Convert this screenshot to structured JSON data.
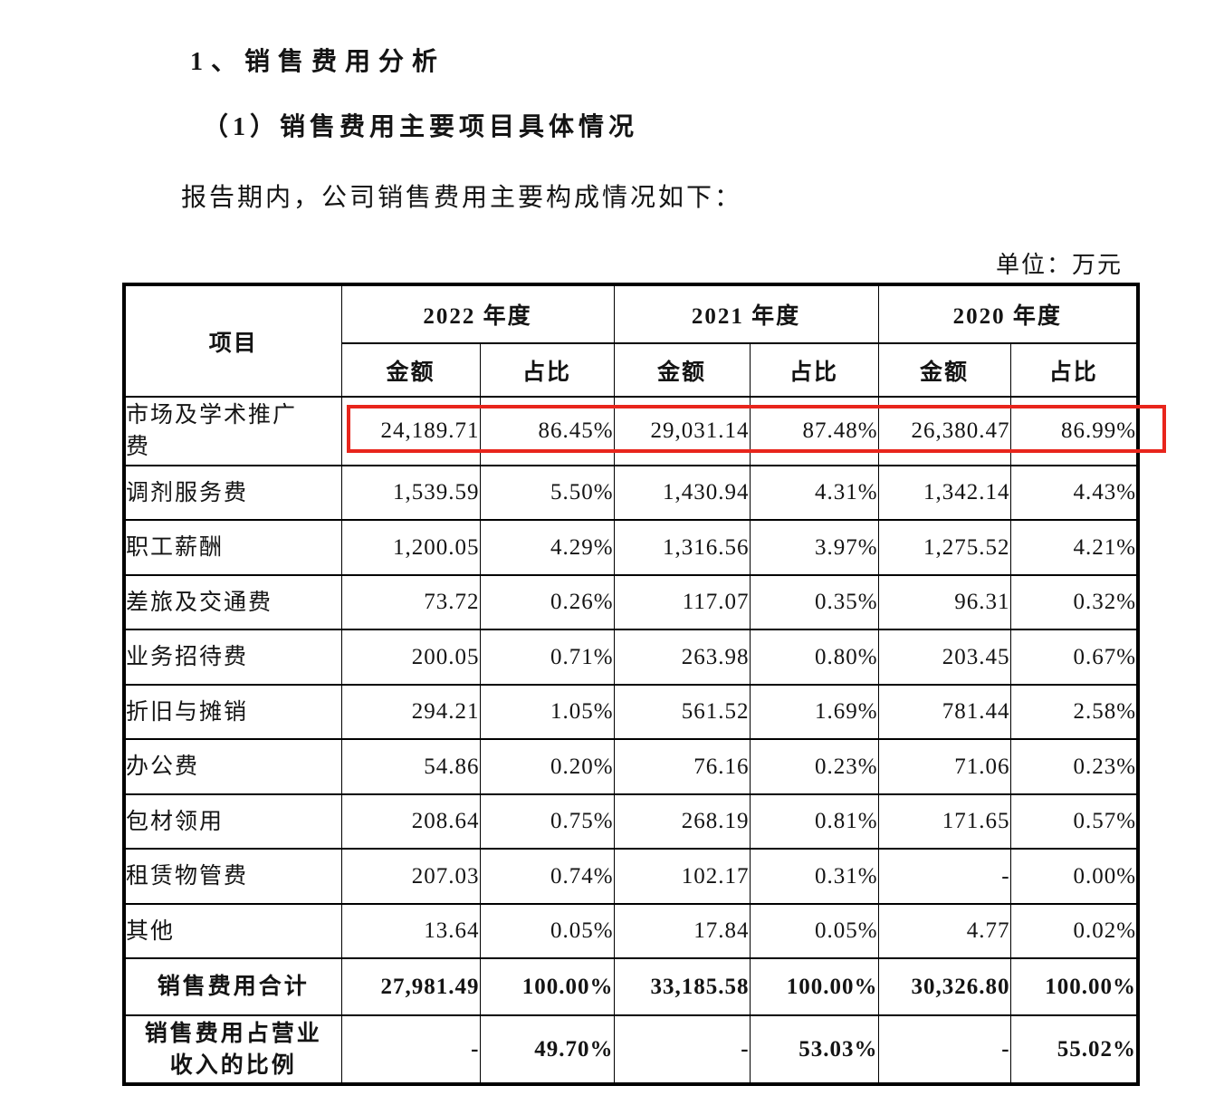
{
  "page": {
    "heading1": "1、销售费用分析",
    "heading2": "（1）销售费用主要项目具体情况",
    "paragraph": "报告期内，公司销售费用主要构成情况如下：",
    "unit_label": "单位：万元"
  },
  "table": {
    "corner_header": "项目",
    "sub_headers": [
      "金额",
      "占比"
    ],
    "year_groups": [
      {
        "year": "2022 年度"
      },
      {
        "year": "2021 年度"
      },
      {
        "year": "2020 年度"
      }
    ],
    "highlight_color": "#e8251c",
    "rows": [
      {
        "label": "市场及学术推广\n费",
        "values": [
          "24,189.71",
          "86.45%",
          "29,031.14",
          "87.48%",
          "26,380.47",
          "86.99%"
        ],
        "bold": false,
        "label_center": false,
        "highlighted": true
      },
      {
        "label": "调剂服务费",
        "values": [
          "1,539.59",
          "5.50%",
          "1,430.94",
          "4.31%",
          "1,342.14",
          "4.43%"
        ],
        "bold": false,
        "label_center": false,
        "highlighted": false
      },
      {
        "label": "职工薪酬",
        "values": [
          "1,200.05",
          "4.29%",
          "1,316.56",
          "3.97%",
          "1,275.52",
          "4.21%"
        ],
        "bold": false,
        "label_center": false,
        "highlighted": false
      },
      {
        "label": "差旅及交通费",
        "values": [
          "73.72",
          "0.26%",
          "117.07",
          "0.35%",
          "96.31",
          "0.32%"
        ],
        "bold": false,
        "label_center": false,
        "highlighted": false
      },
      {
        "label": "业务招待费",
        "values": [
          "200.05",
          "0.71%",
          "263.98",
          "0.80%",
          "203.45",
          "0.67%"
        ],
        "bold": false,
        "label_center": false,
        "highlighted": false
      },
      {
        "label": "折旧与摊销",
        "values": [
          "294.21",
          "1.05%",
          "561.52",
          "1.69%",
          "781.44",
          "2.58%"
        ],
        "bold": false,
        "label_center": false,
        "highlighted": false
      },
      {
        "label": "办公费",
        "values": [
          "54.86",
          "0.20%",
          "76.16",
          "0.23%",
          "71.06",
          "0.23%"
        ],
        "bold": false,
        "label_center": false,
        "highlighted": false
      },
      {
        "label": "包材领用",
        "values": [
          "208.64",
          "0.75%",
          "268.19",
          "0.81%",
          "171.65",
          "0.57%"
        ],
        "bold": false,
        "label_center": false,
        "highlighted": false
      },
      {
        "label": "租赁物管费",
        "values": [
          "207.03",
          "0.74%",
          "102.17",
          "0.31%",
          "-",
          "0.00%"
        ],
        "bold": false,
        "label_center": false,
        "highlighted": false
      },
      {
        "label": "其他",
        "values": [
          "13.64",
          "0.05%",
          "17.84",
          "0.05%",
          "4.77",
          "0.02%"
        ],
        "bold": false,
        "label_center": false,
        "highlighted": false
      },
      {
        "label": "销售费用合计",
        "values": [
          "27,981.49",
          "100.00%",
          "33,185.58",
          "100.00%",
          "30,326.80",
          "100.00%"
        ],
        "bold": true,
        "label_center": true,
        "highlighted": false
      },
      {
        "label": "销售费用占营业\n收入的比例",
        "values": [
          "-",
          "49.70%",
          "-",
          "53.03%",
          "-",
          "55.02%"
        ],
        "bold": true,
        "label_center": true,
        "highlighted": false
      }
    ]
  }
}
